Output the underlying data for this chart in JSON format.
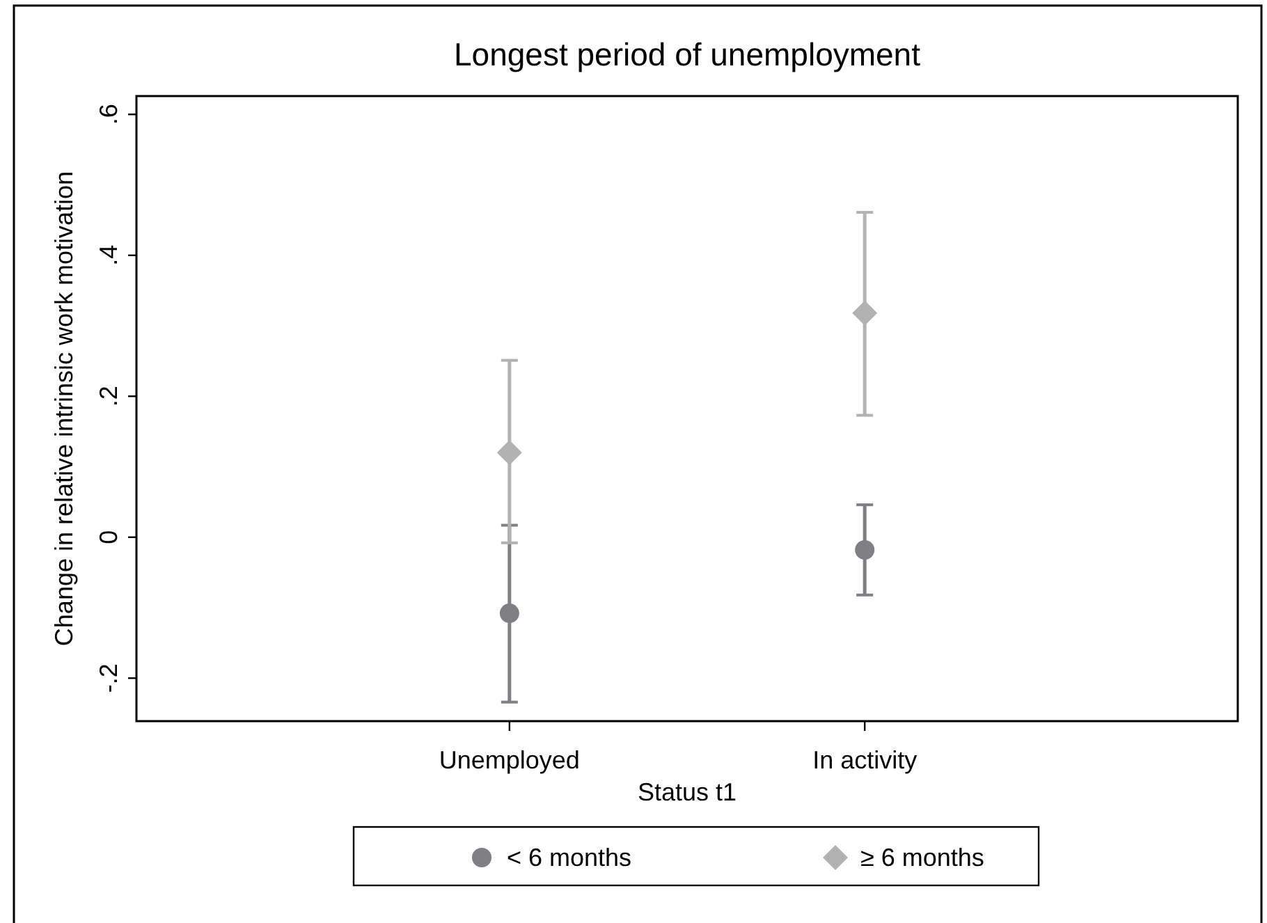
{
  "chart_data": {
    "type": "scatter",
    "title": "Longest period of unemployment",
    "xlabel": "Status t1",
    "ylabel": "Change in relative intrinsic work motivation",
    "categories": [
      "Unemployed",
      "In activity"
    ],
    "series": [
      {
        "name": "< 6 months",
        "color": "#7f7f84",
        "marker": "circle",
        "values": [
          -0.108,
          -0.018
        ],
        "errors": [
          [
            -0.234,
            0.017
          ],
          [
            -0.082,
            0.046
          ]
        ]
      },
      {
        "name": "≥ 6 months",
        "color": "#b2b2b2",
        "marker": "diamond",
        "values": [
          0.12,
          0.318
        ],
        "errors": [
          [
            -0.008,
            0.251
          ],
          [
            0.173,
            0.461
          ]
        ]
      }
    ],
    "ylim": [
      -0.261,
      0.626
    ],
    "yticks": [
      {
        "value": -0.2,
        "label": "-.2"
      },
      0,
      {
        "value": 0.2,
        "label": ".2"
      },
      {
        "value": 0.4,
        "label": ".4"
      },
      {
        "value": 0.6,
        "label": ".6"
      }
    ],
    "legend": "bottom"
  }
}
